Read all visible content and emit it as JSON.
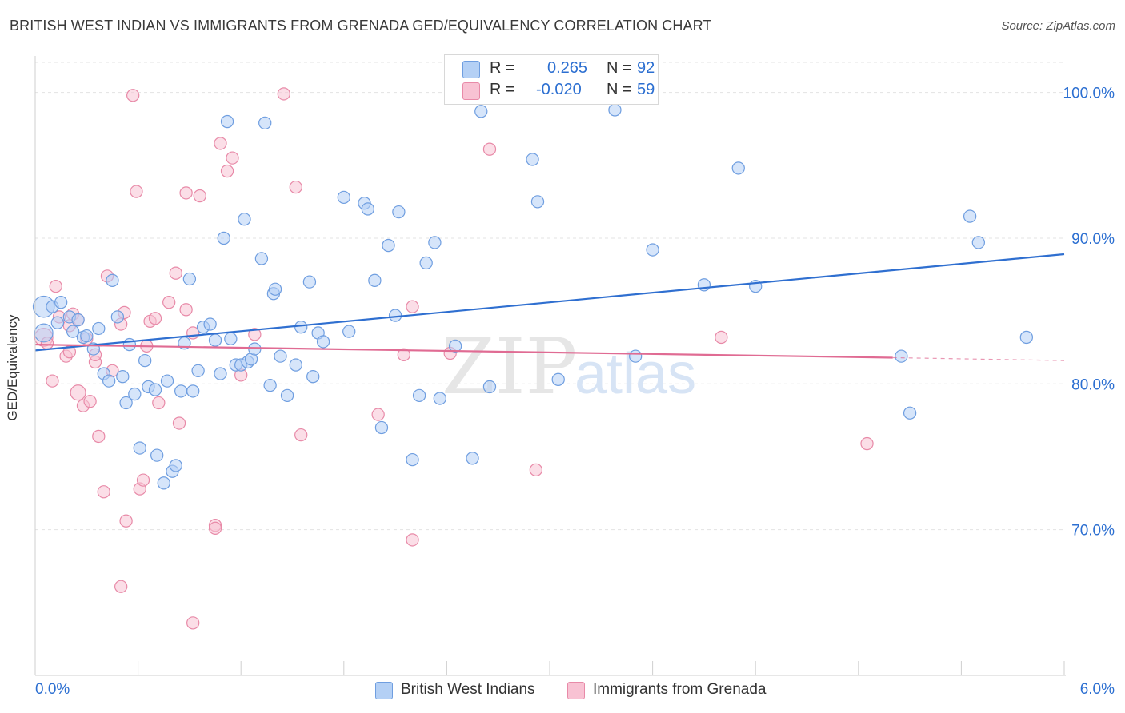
{
  "title": "BRITISH WEST INDIAN VS IMMIGRANTS FROM GRENADA GED/EQUIVALENCY CORRELATION CHART",
  "source": "Source: ZipAtlas.com",
  "watermark": {
    "zip": "ZIP",
    "atlas": "atlas"
  },
  "legend_top": {
    "rows": [
      {
        "r_label": "R =",
        "r_value": "0.265",
        "n_label": "N =",
        "n_value": "92"
      },
      {
        "r_label": "R =",
        "r_value": "-0.020",
        "n_label": "N =",
        "n_value": "59"
      }
    ]
  },
  "legend_bottom": [
    {
      "label": "British West Indians"
    },
    {
      "label": "Immigrants from Grenada"
    }
  ],
  "colors": {
    "blue_fill": "#b4d0f5",
    "blue_stroke": "#6f9ee0",
    "blue_line": "#2f6fd0",
    "pink_fill": "#f8c2d3",
    "pink_stroke": "#e88aa8",
    "pink_line": "#e06b93",
    "tick_label": "#2c6fd1",
    "grid": "#e3e3e3"
  },
  "chart_data": {
    "type": "scatter",
    "title": "BRITISH WEST INDIAN VS IMMIGRANTS FROM GRENADA GED/EQUIVALENCY CORRELATION CHART",
    "xlabel": "",
    "ylabel": "GED/Equivalency",
    "xlim": [
      0,
      6
    ],
    "ylim": [
      60,
      102.5
    ],
    "x_tick_labels": [
      "0.0%",
      "6.0%"
    ],
    "y_ticks": [
      70,
      80,
      90,
      100
    ],
    "y_tick_labels": [
      "70.0%",
      "80.0%",
      "90.0%",
      "100.0%"
    ],
    "grid": true,
    "legend": "top-center",
    "series": [
      {
        "name": "British West Indians",
        "r": 0.265,
        "n": 92,
        "trend": {
          "x": [
            0,
            6
          ],
          "y": [
            82.3,
            88.9
          ]
        },
        "points": [
          [
            0.05,
            85.3,
            1.4
          ],
          [
            0.05,
            83.5,
            1.2
          ],
          [
            0.1,
            85.3,
            0.8
          ],
          [
            0.13,
            84.2,
            0.8
          ],
          [
            0.15,
            85.6,
            0.8
          ],
          [
            0.2,
            84.6,
            0.8
          ],
          [
            0.22,
            83.6,
            0.8
          ],
          [
            0.25,
            84.4,
            0.8
          ],
          [
            0.28,
            83.2,
            0.8
          ],
          [
            0.3,
            83.3,
            0.8
          ],
          [
            0.34,
            82.4,
            0.8
          ],
          [
            0.37,
            83.8,
            0.8
          ],
          [
            0.4,
            80.7,
            0.8
          ],
          [
            0.43,
            80.2,
            0.8
          ],
          [
            0.45,
            87.1,
            0.8
          ],
          [
            0.48,
            84.6,
            0.8
          ],
          [
            0.51,
            80.5,
            0.8
          ],
          [
            0.53,
            78.7,
            0.8
          ],
          [
            0.55,
            82.7,
            0.8
          ],
          [
            0.58,
            79.3,
            0.8
          ],
          [
            0.61,
            75.6,
            0.8
          ],
          [
            0.64,
            81.6,
            0.8
          ],
          [
            0.66,
            79.8,
            0.8
          ],
          [
            0.7,
            79.6,
            0.8
          ],
          [
            0.71,
            75.1,
            0.8
          ],
          [
            0.75,
            73.2,
            0.8
          ],
          [
            0.77,
            80.2,
            0.8
          ],
          [
            0.8,
            74.0,
            0.8
          ],
          [
            0.82,
            74.4,
            0.8
          ],
          [
            0.85,
            79.5,
            0.8
          ],
          [
            0.87,
            82.8,
            0.8
          ],
          [
            0.9,
            87.2,
            0.8
          ],
          [
            0.92,
            79.5,
            0.8
          ],
          [
            0.95,
            80.9,
            0.8
          ],
          [
            0.98,
            83.9,
            0.8
          ],
          [
            1.02,
            84.1,
            0.8
          ],
          [
            1.05,
            83.0,
            0.8
          ],
          [
            1.08,
            80.7,
            0.8
          ],
          [
            1.1,
            90.0,
            0.8
          ],
          [
            1.12,
            98.0,
            0.8
          ],
          [
            1.14,
            83.1,
            0.8
          ],
          [
            1.17,
            81.3,
            0.8
          ],
          [
            1.2,
            81.3,
            0.8
          ],
          [
            1.22,
            91.3,
            0.8
          ],
          [
            1.24,
            81.5,
            0.8
          ],
          [
            1.26,
            81.7,
            0.8
          ],
          [
            1.28,
            82.4,
            0.8
          ],
          [
            1.32,
            88.6,
            0.8
          ],
          [
            1.34,
            97.9,
            0.8
          ],
          [
            1.37,
            79.9,
            0.8
          ],
          [
            1.39,
            86.2,
            0.8
          ],
          [
            1.4,
            86.5,
            0.8
          ],
          [
            1.43,
            81.9,
            0.8
          ],
          [
            1.47,
            79.2,
            0.8
          ],
          [
            1.52,
            81.3,
            0.8
          ],
          [
            1.55,
            83.9,
            0.8
          ],
          [
            1.6,
            87.0,
            0.8
          ],
          [
            1.62,
            80.5,
            0.8
          ],
          [
            1.65,
            83.5,
            0.8
          ],
          [
            1.68,
            82.9,
            0.8
          ],
          [
            1.83,
            83.6,
            0.8
          ],
          [
            1.8,
            92.8,
            0.8
          ],
          [
            1.92,
            92.4,
            0.8
          ],
          [
            1.94,
            92.0,
            0.8
          ],
          [
            1.98,
            87.1,
            0.8
          ],
          [
            2.02,
            77.0,
            0.8
          ],
          [
            2.06,
            89.5,
            0.8
          ],
          [
            2.1,
            84.7,
            0.8
          ],
          [
            2.12,
            91.8,
            0.8
          ],
          [
            2.2,
            74.8,
            0.8
          ],
          [
            2.24,
            79.2,
            0.8
          ],
          [
            2.28,
            88.3,
            0.8
          ],
          [
            2.33,
            89.7,
            0.8
          ],
          [
            2.36,
            79.0,
            0.8
          ],
          [
            2.45,
            82.6,
            0.8
          ],
          [
            2.55,
            74.9,
            0.8
          ],
          [
            2.6,
            98.7,
            0.8
          ],
          [
            2.65,
            79.8,
            0.8
          ],
          [
            2.9,
            95.4,
            0.8
          ],
          [
            2.93,
            92.5,
            0.8
          ],
          [
            3.05,
            80.3,
            0.8
          ],
          [
            3.38,
            98.8,
            0.8
          ],
          [
            3.5,
            81.9,
            0.8
          ],
          [
            3.6,
            89.2,
            0.8
          ],
          [
            3.9,
            86.8,
            0.8
          ],
          [
            4.1,
            94.8,
            0.8
          ],
          [
            4.2,
            86.7,
            0.8
          ],
          [
            5.05,
            81.9,
            0.8
          ],
          [
            5.1,
            78.0,
            0.8
          ],
          [
            5.45,
            91.5,
            0.8
          ],
          [
            5.5,
            89.7,
            0.8
          ],
          [
            5.78,
            83.2,
            0.8
          ]
        ]
      },
      {
        "name": "Immigrants from Grenada",
        "r": -0.02,
        "n": 59,
        "trend": {
          "x": [
            0,
            5.0
          ],
          "y": [
            82.7,
            81.8
          ]
        },
        "trend_dashed": {
          "x": [
            5.0,
            6.0
          ],
          "y": [
            81.8,
            81.6
          ]
        },
        "points": [
          [
            0.05,
            83.2,
            1.2
          ],
          [
            0.07,
            82.8,
            0.8
          ],
          [
            0.1,
            80.2,
            0.8
          ],
          [
            0.12,
            86.7,
            0.8
          ],
          [
            0.14,
            84.6,
            0.8
          ],
          [
            0.18,
            81.9,
            0.8
          ],
          [
            0.2,
            84.0,
            0.8
          ],
          [
            0.22,
            84.8,
            0.8
          ],
          [
            0.25,
            84.4,
            0.8
          ],
          [
            0.25,
            79.4,
            1.0
          ],
          [
            0.28,
            78.5,
            0.8
          ],
          [
            0.3,
            83.1,
            0.8
          ],
          [
            0.32,
            78.8,
            0.8
          ],
          [
            0.35,
            81.5,
            0.8
          ],
          [
            0.37,
            76.4,
            0.8
          ],
          [
            0.4,
            72.6,
            0.8
          ],
          [
            0.42,
            87.4,
            0.8
          ],
          [
            0.45,
            80.9,
            0.8
          ],
          [
            0.5,
            84.1,
            0.8
          ],
          [
            0.52,
            84.9,
            0.8
          ],
          [
            0.53,
            70.6,
            0.8
          ],
          [
            0.57,
            99.8,
            0.8
          ],
          [
            0.59,
            93.2,
            0.8
          ],
          [
            0.61,
            72.8,
            0.8
          ],
          [
            0.63,
            73.4,
            0.8
          ],
          [
            0.65,
            82.6,
            0.8
          ],
          [
            0.67,
            84.3,
            0.8
          ],
          [
            0.7,
            84.5,
            0.8
          ],
          [
            0.72,
            78.7,
            0.8
          ],
          [
            0.78,
            85.6,
            0.8
          ],
          [
            0.82,
            87.6,
            0.8
          ],
          [
            0.84,
            77.3,
            0.8
          ],
          [
            0.88,
            85.1,
            0.8
          ],
          [
            0.88,
            93.1,
            0.8
          ],
          [
            0.92,
            83.5,
            0.8
          ],
          [
            0.96,
            92.9,
            0.8
          ],
          [
            1.05,
            70.3,
            0.8
          ],
          [
            1.05,
            70.1,
            0.8
          ],
          [
            1.08,
            96.5,
            0.8
          ],
          [
            1.12,
            94.6,
            0.8
          ],
          [
            1.15,
            95.5,
            0.8
          ],
          [
            1.2,
            80.6,
            0.8
          ],
          [
            1.28,
            83.4,
            0.8
          ],
          [
            1.45,
            99.9,
            0.8
          ],
          [
            1.52,
            93.5,
            0.8
          ],
          [
            1.55,
            76.5,
            0.8
          ],
          [
            2.0,
            77.9,
            0.8
          ],
          [
            2.2,
            69.3,
            0.8
          ],
          [
            2.2,
            85.3,
            0.8
          ],
          [
            2.15,
            82.0,
            0.8
          ],
          [
            2.42,
            82.1,
            0.8
          ],
          [
            2.65,
            96.1,
            0.8
          ],
          [
            2.92,
            74.1,
            0.8
          ],
          [
            4.0,
            83.2,
            0.8
          ],
          [
            4.85,
            75.9,
            0.8
          ],
          [
            0.5,
            66.1,
            0.8
          ],
          [
            0.92,
            63.6,
            0.8
          ],
          [
            0.2,
            82.2,
            0.8
          ],
          [
            0.35,
            82.0,
            0.8
          ]
        ]
      }
    ]
  }
}
